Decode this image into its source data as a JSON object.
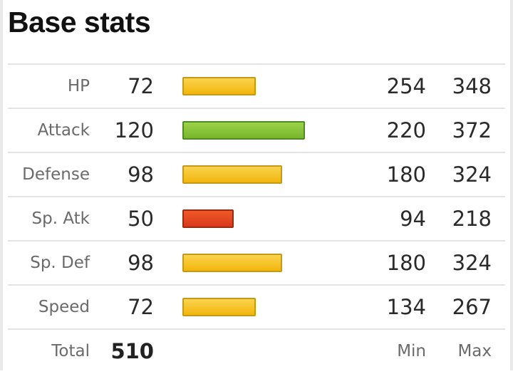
{
  "title": "Base stats",
  "stat_max": 255,
  "colors": {
    "low": "#e04520",
    "mid": "#f7c52a",
    "high": "#8cc63f"
  },
  "stats": [
    {
      "name": "HP",
      "value": 72,
      "min": 254,
      "max": 348,
      "color": "yellow"
    },
    {
      "name": "Attack",
      "value": 120,
      "min": 220,
      "max": 372,
      "color": "green"
    },
    {
      "name": "Defense",
      "value": 98,
      "min": 180,
      "max": 324,
      "color": "yellow"
    },
    {
      "name": "Sp. Atk",
      "value": 50,
      "min": 94,
      "max": 218,
      "color": "red"
    },
    {
      "name": "Sp. Def",
      "value": 98,
      "min": 180,
      "max": 324,
      "color": "yellow"
    },
    {
      "name": "Speed",
      "value": 72,
      "min": 134,
      "max": 267,
      "color": "yellow"
    }
  ],
  "total": {
    "label": "Total",
    "value": 510,
    "min_label": "Min",
    "max_label": "Max"
  }
}
